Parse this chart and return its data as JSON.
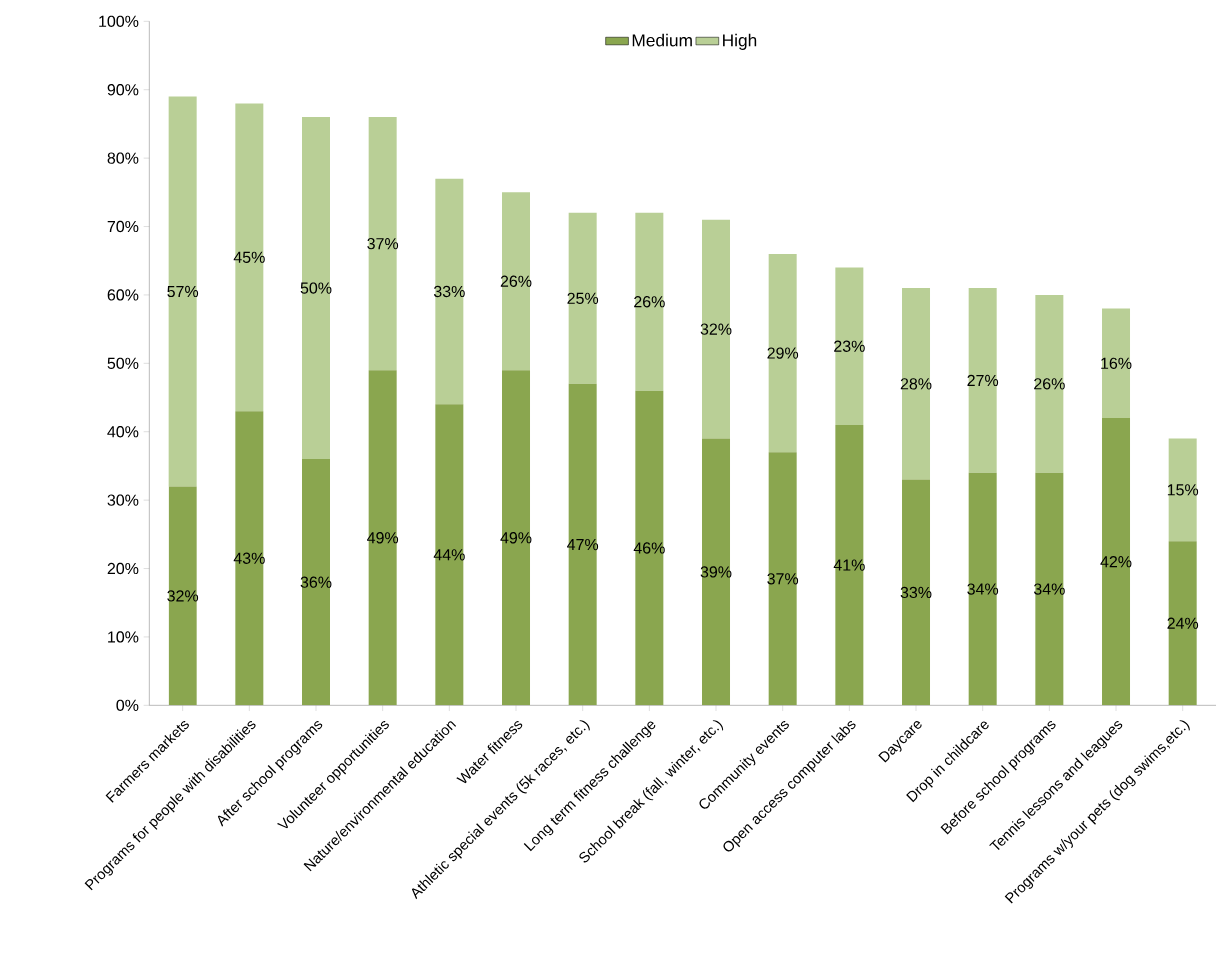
{
  "chart_data": {
    "type": "bar",
    "stacked": true,
    "legend": "top",
    "grid": false,
    "categories": [
      "Farmers markets",
      "Programs for people with disabilities",
      "After school programs",
      "Volunteer opportunities",
      "Nature/environmental education",
      "Water fitness",
      "Athletic special events (5k races, etc.)",
      "Long term fitness challenge",
      "School break (fall, winter, etc.)",
      "Community events",
      "Open access computer labs",
      "Daycare",
      "Drop in childcare",
      "Before school programs",
      "Tennis lessons and leagues",
      "Programs w/your pets (dog swims,etc.)"
    ],
    "series": [
      {
        "name": "Medium",
        "color": "#8aa64f",
        "values": [
          32,
          43,
          36,
          49,
          44,
          49,
          47,
          46,
          39,
          37,
          41,
          33,
          34,
          34,
          42,
          24
        ],
        "value_labels": [
          "32%",
          "43%",
          "36%",
          "49%",
          "44%",
          "49%",
          "47%",
          "46%",
          "39%",
          "37%",
          "41%",
          "33%",
          "34%",
          "34%",
          "42%",
          "24%"
        ]
      },
      {
        "name": "High",
        "color": "#b9cf96",
        "values": [
          57,
          45,
          50,
          37,
          33,
          26,
          25,
          26,
          32,
          29,
          23,
          28,
          27,
          26,
          16,
          15
        ],
        "value_labels": [
          "57%",
          "45%",
          "50%",
          "37%",
          "33%",
          "26%",
          "25%",
          "26%",
          "32%",
          "29%",
          "23%",
          "28%",
          "27%",
          "26%",
          "16%",
          "15%"
        ]
      }
    ],
    "ylim": [
      0,
      100
    ],
    "yticks": [
      {
        "value": 0,
        "label": "0%"
      },
      {
        "value": 10,
        "label": "10%"
      },
      {
        "value": 20,
        "label": "20%"
      },
      {
        "value": 30,
        "label": "30%"
      },
      {
        "value": 40,
        "label": "40%"
      },
      {
        "value": 50,
        "label": "50%"
      },
      {
        "value": 60,
        "label": "60%"
      },
      {
        "value": 70,
        "label": "70%"
      },
      {
        "value": 80,
        "label": "80%"
      },
      {
        "value": 90,
        "label": "90%"
      },
      {
        "value": 100,
        "label": "100%"
      }
    ]
  }
}
